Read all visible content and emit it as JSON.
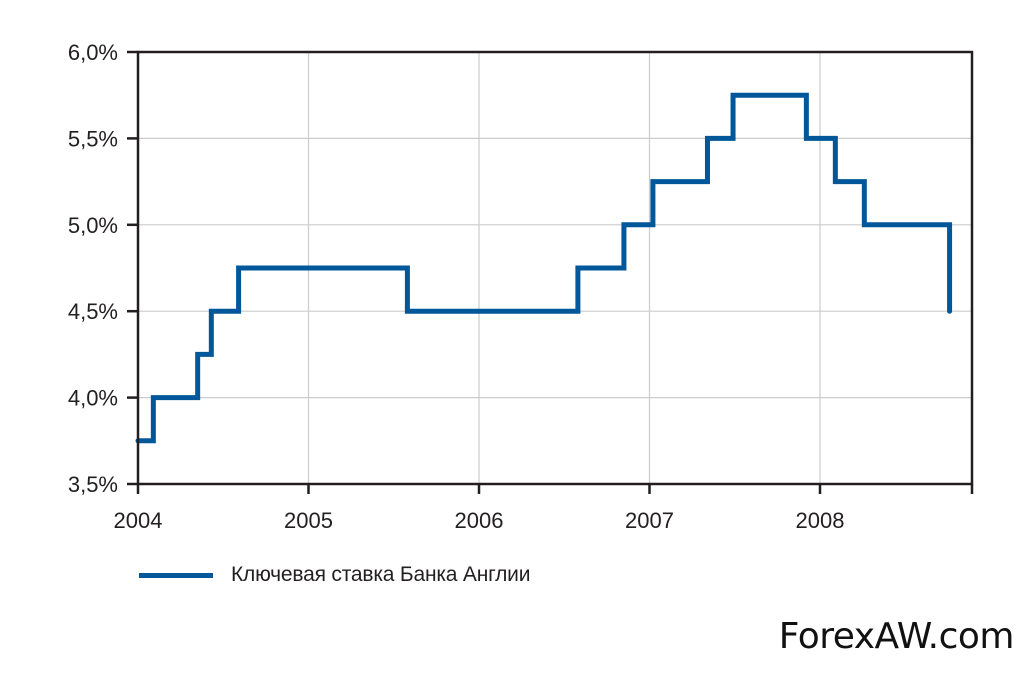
{
  "chart_data": {
    "type": "line",
    "step": "post",
    "title": "",
    "xlabel": "",
    "ylabel": "",
    "xlim": [
      2004,
      2008.9
    ],
    "ylim": [
      3.5,
      6.0
    ],
    "grid": true,
    "legend_position": "bottom-left",
    "x_ticks": [
      2004,
      2005,
      2006,
      2007,
      2008
    ],
    "x_tick_labels": [
      "2004",
      "2005",
      "2006",
      "2007",
      "2008"
    ],
    "y_ticks": [
      3.5,
      4.0,
      4.5,
      5.0,
      5.5,
      6.0
    ],
    "y_tick_labels": [
      "3,5%",
      "4,0%",
      "4,5%",
      "5,0%",
      "5,5%",
      "6,0%"
    ],
    "series": [
      {
        "name": "Ключевая ставка Банка Англии",
        "color": "#00579a",
        "points": [
          {
            "x": 2004.0,
            "y": 3.75
          },
          {
            "x": 2004.09,
            "y": 4.0
          },
          {
            "x": 2004.35,
            "y": 4.25
          },
          {
            "x": 2004.43,
            "y": 4.5
          },
          {
            "x": 2004.59,
            "y": 4.75
          },
          {
            "x": 2005.58,
            "y": 4.5
          },
          {
            "x": 2006.58,
            "y": 4.75
          },
          {
            "x": 2006.85,
            "y": 5.0
          },
          {
            "x": 2007.02,
            "y": 5.25
          },
          {
            "x": 2007.34,
            "y": 5.5
          },
          {
            "x": 2007.49,
            "y": 5.75
          },
          {
            "x": 2007.92,
            "y": 5.5
          },
          {
            "x": 2008.09,
            "y": 5.25
          },
          {
            "x": 2008.26,
            "y": 5.0
          },
          {
            "x": 2008.76,
            "y": 4.5
          }
        ],
        "end_x": 2008.76
      }
    ]
  },
  "legend": {
    "label": "Ключевая ставка Банка Англии",
    "color": "#00579a"
  },
  "watermark": {
    "text": "ForexAW.com"
  },
  "colors": {
    "line": "#00579a",
    "axis": "#231f20",
    "grid": "#cccccc",
    "background": "#ffffff"
  }
}
